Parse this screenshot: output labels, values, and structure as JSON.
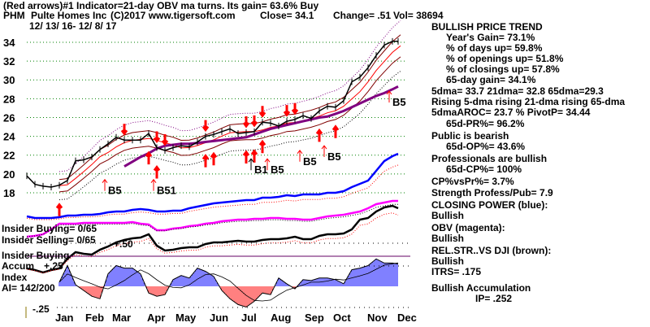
{
  "header": {
    "line1": "(Red arrows)#1 Indicator=21-day OBV ma turns. Its gain= 63.6% Buy",
    "symbol": "PHM",
    "company": "Pulte Homes Inc",
    "copyright": "(C)2017 www.tigersoft.com",
    "close": "Close=  34.1",
    "change": "Change= .51",
    "volume": "Vol= 38694",
    "date_range": "12/ 13/ 16- 12/ 8/ 17"
  },
  "stats": {
    "trend": "BULLISH PRICE TREND",
    "years_gain": "Year's Gain= 73.1%",
    "days_up": "% of days up= 59.8%",
    "openings_up": "% of openings up= 51.8%",
    "closings_up": "% of closings up= 57.8%",
    "gain65": "65-day gain= 34.1%",
    "dma": "5dma= 33.7 21dma= 32.8 65dma=29.3",
    "rising": "Rising 5-dma rising 21-dma rising 65-dma",
    "aroc": "5dmaAROC= 23.7 %  PivotP= 34.44",
    "pr": "65d-PR%= 96.2%",
    "public": "Public is bearish",
    "op": "65d-OP%= 43.6%",
    "professionals": "Professionals are bullish",
    "cp": "65d-CP%= 100%",
    "cpvspr": "CP%vsPr%=  3.7%",
    "strength": "Strength Profess/Pub= 7.9",
    "closing_power": "CLOSING POWER (blue):",
    "closing_power_status": "Bullish",
    "obv": "OBV (magenta):",
    "obv_status": "Bullish",
    "relstr": "REL.STR..VS DJI (brown):",
    "relstr_status": "Bullish",
    "itrs": "ITRS= .175",
    "accumulation": "Bullish Accumulation",
    "ip": "IP=  .252"
  },
  "lower_labels": {
    "insider_buying": "Insider Buying= 0/65",
    "insider_selling": "Insider Selling= 0/65",
    "plus50": "+.50",
    "insider_buying2": "Insider Buying",
    "accum": "Accum",
    "plus25": "+.25",
    "index": "Index",
    "ai": "AI= 142/200",
    "minus25": "-.25"
  },
  "chart_data": {
    "type": "line",
    "title": "PHM Pulte Homes Inc",
    "y_ticks": [
      "34",
      "32",
      "30",
      "28",
      "26",
      "24",
      "22",
      "20",
      "18"
    ],
    "ylim": [
      17,
      35
    ],
    "months": [
      "Jan",
      "Feb",
      "Mar",
      "Apr",
      "May",
      "Jun",
      "Jul",
      "Aug",
      "Sep",
      "Oct",
      "Nov",
      "Dec"
    ],
    "grid": true,
    "price": [
      19.8,
      18.9,
      18.7,
      18.6,
      18.8,
      19.3,
      21.4,
      21.5,
      21.8,
      22.6,
      23.2,
      23.9,
      23.6,
      23.6,
      23.6,
      24.3,
      22.8,
      22.5,
      22.8,
      23,
      22.9,
      23.4,
      24,
      24.2,
      24.5,
      24.8,
      24.3,
      24.4,
      24.5,
      25.5,
      25.4,
      25.1,
      25.6,
      25.8,
      26.2,
      25.9,
      26.7,
      27.2,
      27.1,
      27.8,
      29.8,
      30.3,
      31.3,
      32.6,
      33.7,
      34.1,
      34.1
    ],
    "ma65": [
      null,
      null,
      null,
      null,
      null,
      null,
      null,
      null,
      null,
      null,
      null,
      null,
      20.8,
      21.3,
      21.8,
      22.2,
      22.7,
      23,
      23.1,
      23.2,
      23.2,
      23.3,
      23.4,
      23.5,
      23.6,
      23.7,
      23.8,
      23.9,
      24.2,
      24.5,
      24.8,
      25,
      25.2,
      25.4,
      25.6,
      25.8,
      26,
      26.1,
      26.4,
      26.7,
      27.1,
      27.5,
      27.9,
      28.3,
      28.6,
      29.0,
      29.3
    ],
    "closing_power": [
      2,
      0,
      0,
      0,
      1,
      3,
      3,
      4,
      4,
      5,
      7,
      8,
      8,
      10,
      11,
      10,
      8,
      8,
      9,
      9,
      12,
      14,
      16,
      18,
      19,
      20,
      21,
      22,
      22,
      25,
      25,
      26,
      28,
      27,
      29,
      29,
      29,
      31,
      31,
      33,
      38,
      42,
      46,
      58,
      70,
      76,
      79
    ],
    "obv": [
      9,
      10,
      12,
      18,
      25,
      25,
      25,
      26,
      26,
      26,
      26,
      26,
      26,
      27,
      25,
      24,
      17,
      17,
      19,
      20,
      22,
      23,
      25,
      26,
      28,
      29,
      30,
      30,
      31,
      31,
      32,
      32,
      31,
      31,
      30,
      30,
      32,
      34,
      35,
      36,
      38,
      40,
      44,
      49,
      51,
      53,
      53
    ],
    "rel_strength": [
      10,
      8,
      5,
      8,
      10,
      22,
      30,
      28,
      27,
      33,
      37,
      42,
      45,
      47,
      48,
      52,
      38,
      32,
      33,
      35,
      36,
      36,
      40,
      42,
      42,
      43,
      44,
      43,
      43,
      45,
      46,
      46,
      47,
      49,
      46,
      46,
      50,
      52,
      52,
      53,
      58,
      70,
      72,
      80,
      85,
      87,
      84
    ],
    "accum_index": [
      null,
      null,
      null,
      null,
      0.05,
      0.25,
      0.02,
      -0.05,
      -0.12,
      -0.15,
      0.15,
      0.25,
      0.22,
      0.22,
      0.15,
      -0.08,
      -0.12,
      -0.1,
      0.08,
      0.13,
      0.1,
      0.22,
      0.18,
      0.12,
      -0.05,
      -0.15,
      -0.22,
      -0.25,
      -0.18,
      -0.08,
      -0.1,
      0.1,
      0.03,
      -0.03,
      0.08,
      0.07,
      0.1,
      0.1,
      0.08,
      0.03,
      0.2,
      0.22,
      0.25,
      0.33,
      0.28,
      0.28,
      0.27
    ],
    "buy_signals": [
      {
        "i": 10,
        "price": 18.2,
        "label": "B5",
        "color": "#ff0000"
      },
      {
        "i": 16,
        "price": 18.2,
        "label": "B51",
        "color": "#ff0000"
      },
      {
        "i": 28,
        "price": 20.4,
        "label": "B1",
        "color": "#000000"
      },
      {
        "i": 30,
        "price": 20.4,
        "label": "B5",
        "color": "#ff0000"
      },
      {
        "i": 34,
        "price": 21.3,
        "label": "B5",
        "color": "#ff0000"
      },
      {
        "i": 37,
        "price": 21.8,
        "label": "B5",
        "color": "#ff0000"
      },
      {
        "i": 45,
        "price": 27.6,
        "label": "B5",
        "color": "#ff0000"
      }
    ],
    "red_up_arrows": [
      4,
      15,
      16,
      22,
      23,
      27,
      28,
      29,
      36,
      38
    ],
    "red_down_arrows": [
      12,
      16,
      17,
      22,
      27,
      28,
      29,
      32,
      33
    ]
  }
}
